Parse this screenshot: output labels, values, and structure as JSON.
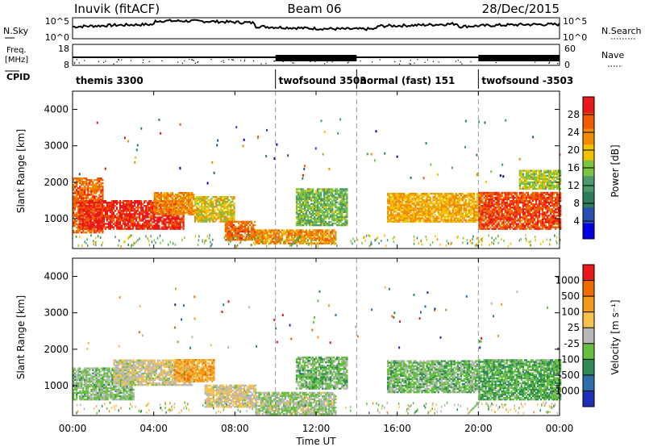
{
  "header": {
    "station": "Inuvik (fitACF)",
    "beam": "Beam 06",
    "date": "28/Dec/2015"
  },
  "sky_panel": {
    "left_label": "N.Sky",
    "right_label": "N.Search",
    "tick_top_left": "10^5",
    "tick_bottom_left": "10^0",
    "tick_top_right": "10^5",
    "tick_bottom_right": "10^0"
  },
  "freq_panel": {
    "left_label_1": "Freq.",
    "left_label_2": "[MHz]",
    "right_label": "Nave",
    "tick_top_left": "18",
    "tick_bottom_left": "8",
    "tick_top_right": "60",
    "tick_bottom_right": "0"
  },
  "cpid_label": "CPID",
  "cpid_segments": [
    {
      "label": "themis 3300",
      "start_h": 0,
      "end_h": 10
    },
    {
      "label": "twofsound 3503",
      "start_h": 10,
      "end_h": 14
    },
    {
      "label": "normal (fast) 151",
      "start_h": 14,
      "end_h": 20
    },
    {
      "label": "twofsound -3503",
      "start_h": 20,
      "end_h": 24
    }
  ],
  "x_axis": {
    "label": "Time UT",
    "ticks": [
      "00:00",
      "04:00",
      "08:00",
      "12:00",
      "16:00",
      "20:00",
      "00:00"
    ]
  },
  "power_panel": {
    "ylabel": "Slant Range [km]",
    "yticks": [
      "1000",
      "2000",
      "3000",
      "4000"
    ],
    "colorbar_label": "Power [dB]",
    "colorbar_ticks": [
      "28",
      "24",
      "20",
      "16",
      "12",
      "8",
      "4"
    ],
    "colors": [
      "#0000e0",
      "#2a4fb0",
      "#2e7d5a",
      "#4a9a6c",
      "#7cc244",
      "#f2c200",
      "#f08a00",
      "#f05a00",
      "#e81818"
    ]
  },
  "velocity_panel": {
    "ylabel": "Slant Range [km]",
    "yticks": [
      "1000",
      "2000",
      "3000",
      "4000"
    ],
    "colorbar_label": "Velocity [m s⁻¹]",
    "colorbar_ticks": [
      "1000",
      "500",
      "100",
      "25",
      "-25",
      "-100",
      "-500",
      "-1000"
    ],
    "colors": [
      "#1c2fb8",
      "#2e6fa8",
      "#2f8a55",
      "#66c040",
      "#b8b8b8",
      "#f7c24c",
      "#f39a1a",
      "#ef6b00",
      "#e81818"
    ]
  },
  "chart_data": {
    "type": "heatmap",
    "x_range_hours": [
      0,
      24
    ],
    "y_range_km": [
      180,
      4500
    ],
    "panels": [
      {
        "name": "Power",
        "units": "dB",
        "scale": [
          0,
          30
        ],
        "regions": [
          {
            "t": [
              0.0,
              1.5
            ],
            "r": [
              600,
              2100
            ],
            "value": 24
          },
          {
            "t": [
              0.3,
              5.5
            ],
            "r": [
              700,
              1500
            ],
            "value": 28
          },
          {
            "t": [
              4.0,
              6.0
            ],
            "r": [
              1100,
              1700
            ],
            "value": 22
          },
          {
            "t": [
              6.0,
              8.0
            ],
            "r": [
              900,
              1600
            ],
            "value": 18
          },
          {
            "t": [
              7.5,
              9.0
            ],
            "r": [
              400,
              900
            ],
            "value": 24
          },
          {
            "t": [
              9.0,
              13.0
            ],
            "r": [
              300,
              700
            ],
            "value": 22
          },
          {
            "t": [
              11.0,
              13.5
            ],
            "r": [
              800,
              1800
            ],
            "value": 14
          },
          {
            "t": [
              15.5,
              20.0
            ],
            "r": [
              900,
              1700
            ],
            "value": 20
          },
          {
            "t": [
              20.0,
              24.0
            ],
            "r": [
              700,
              1700
            ],
            "value": 26
          },
          {
            "t": [
              22.0,
              24.0
            ],
            "r": [
              1800,
              2300
            ],
            "value": 16
          }
        ]
      },
      {
        "name": "Velocity",
        "units": "m s^-1",
        "scale": [
          -1000,
          1000
        ],
        "regions": [
          {
            "t": [
              0.0,
              3.0
            ],
            "r": [
              600,
              1500
            ],
            "value": -150
          },
          {
            "t": [
              2.0,
              6.0
            ],
            "r": [
              1000,
              1700
            ],
            "value": 60
          },
          {
            "t": [
              5.0,
              7.0
            ],
            "r": [
              1100,
              1700
            ],
            "value": 400
          },
          {
            "t": [
              6.5,
              9.0
            ],
            "r": [
              400,
              1000
            ],
            "value": 80
          },
          {
            "t": [
              9.0,
              13.0
            ],
            "r": [
              200,
              800
            ],
            "value": -60
          },
          {
            "t": [
              11.0,
              13.5
            ],
            "r": [
              900,
              1800
            ],
            "value": -200
          },
          {
            "t": [
              15.5,
              20.0
            ],
            "r": [
              800,
              1700
            ],
            "value": -200
          },
          {
            "t": [
              20.0,
              24.0
            ],
            "r": [
              600,
              1700
            ],
            "value": -300
          }
        ]
      }
    ]
  }
}
